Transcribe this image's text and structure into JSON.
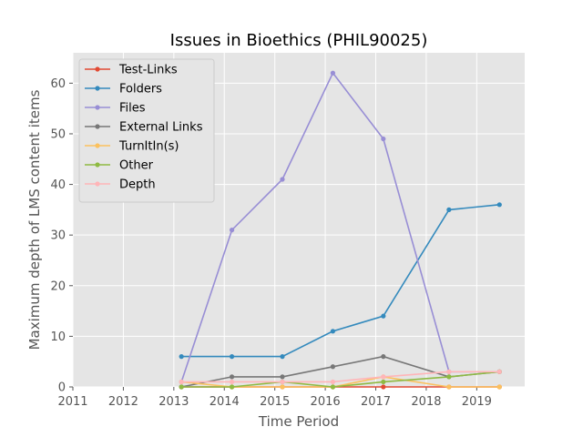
{
  "chart_data": {
    "type": "line",
    "title": "Issues in Bioethics (PHIL90025)",
    "xlabel": "Time Period",
    "ylabel": "Maximum depth of LMS content items",
    "xlim": [
      2011.0,
      2019.95
    ],
    "ylim": [
      0,
      66
    ],
    "xticks": [
      "2011",
      "2012",
      "2013",
      "2014",
      "2015",
      "2016",
      "2017",
      "2018",
      "2019"
    ],
    "yticks": [
      0,
      10,
      20,
      30,
      40,
      50,
      60
    ],
    "grid": true,
    "legend_position": "upper-left",
    "x": [
      2013.15,
      2014.15,
      2015.15,
      2016.15,
      2017.15,
      2018.45,
      2019.45
    ],
    "series": [
      {
        "name": "Test-Links",
        "color": "#e24a33",
        "values": [
          0,
          0,
          0,
          0,
          0,
          0,
          0
        ]
      },
      {
        "name": "Folders",
        "color": "#348abd",
        "values": [
          6,
          6,
          6,
          11,
          14,
          35,
          36
        ]
      },
      {
        "name": "Files",
        "color": "#988ed5",
        "values": [
          1,
          31,
          41,
          62,
          49,
          3,
          3
        ]
      },
      {
        "name": "External Links",
        "color": "#777777",
        "values": [
          0,
          2,
          2,
          4,
          6,
          2,
          3
        ]
      },
      {
        "name": "TurnItIn(s)",
        "color": "#fbc15e",
        "values": [
          1,
          0,
          0,
          0,
          2,
          0,
          0
        ]
      },
      {
        "name": "Other",
        "color": "#8eba42",
        "values": [
          0,
          0,
          1,
          0,
          1,
          2,
          3
        ]
      },
      {
        "name": "Depth",
        "color": "#ffb5b8",
        "values": [
          1,
          1,
          1,
          1,
          2,
          3,
          3
        ]
      }
    ]
  }
}
